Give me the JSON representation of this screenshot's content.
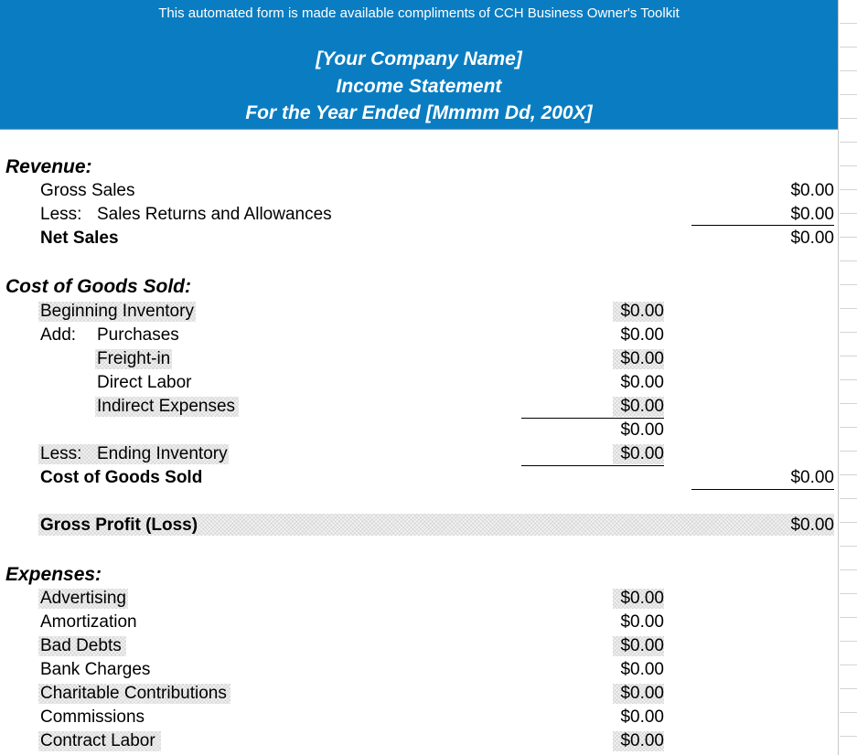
{
  "header": {
    "note": "This automated form is made available compliments of CCH Business Owner's Toolkit",
    "company": "[Your Company Name]",
    "title": "Income Statement",
    "period": "For the Year Ended [Mmmm Dd, 200X]"
  },
  "colors": {
    "header_bg": "#0a7dc2",
    "header_text": "#ffffff"
  },
  "revenue": {
    "heading": "Revenue:",
    "gross_sales": {
      "label": "Gross Sales",
      "amount": "$0.00"
    },
    "less": "Less:",
    "returns": {
      "label": "Sales Returns and Allowances",
      "amount": "$0.00"
    },
    "net_sales": {
      "label": "Net Sales",
      "amount": "$0.00"
    }
  },
  "cogs": {
    "heading": "Cost of Goods Sold:",
    "beginning": {
      "label": "Beginning Inventory",
      "amount": "$0.00"
    },
    "add": "Add:",
    "purchases": {
      "label": "Purchases",
      "amount": "$0.00"
    },
    "freight": {
      "label": "Freight-in",
      "amount": "$0.00"
    },
    "labor": {
      "label": "Direct Labor",
      "amount": "$0.00"
    },
    "indirect": {
      "label": "Indirect Expenses",
      "amount": "$0.00"
    },
    "subtotal": "$0.00",
    "less": "Less:",
    "ending": {
      "label": "Ending Inventory",
      "amount": "$0.00"
    },
    "total": {
      "label": "Cost of Goods Sold",
      "amount": "$0.00"
    }
  },
  "gross_profit": {
    "label": "Gross Profit (Loss)",
    "amount": "$0.00"
  },
  "expenses": {
    "heading": "Expenses:",
    "items": [
      {
        "label": "Advertising",
        "amount": "$0.00"
      },
      {
        "label": "Amortization",
        "amount": "$0.00"
      },
      {
        "label": "Bad Debts",
        "amount": "$0.00"
      },
      {
        "label": "Bank Charges",
        "amount": "$0.00"
      },
      {
        "label": "Charitable Contributions",
        "amount": "$0.00"
      },
      {
        "label": "Commissions",
        "amount": "$0.00"
      },
      {
        "label": "Contract Labor",
        "amount": "$0.00"
      }
    ]
  }
}
